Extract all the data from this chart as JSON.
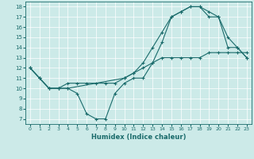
{
  "xlabel": "Humidex (Indice chaleur)",
  "background_color": "#cceae8",
  "line_color": "#1a6b6b",
  "xlim": [
    -0.5,
    23.5
  ],
  "ylim": [
    6.5,
    18.5
  ],
  "xticks": [
    0,
    1,
    2,
    3,
    4,
    5,
    6,
    7,
    8,
    9,
    10,
    11,
    12,
    13,
    14,
    15,
    16,
    17,
    18,
    19,
    20,
    21,
    22,
    23
  ],
  "yticks": [
    7,
    8,
    9,
    10,
    11,
    12,
    13,
    14,
    15,
    16,
    17,
    18
  ],
  "line1_x": [
    0,
    1,
    2,
    3,
    4,
    5,
    6,
    7,
    8,
    9,
    10,
    11,
    12,
    13,
    14,
    15,
    16,
    17,
    18,
    19,
    20,
    21,
    22,
    23
  ],
  "line1_y": [
    12,
    11,
    10,
    10,
    10,
    9.5,
    7.5,
    7,
    7,
    9.5,
    10.5,
    11,
    11,
    12.5,
    14.5,
    17,
    17.5,
    18,
    18,
    17,
    17,
    14,
    14,
    13
  ],
  "line2_x": [
    0,
    1,
    2,
    3,
    4,
    10,
    11,
    12,
    13,
    14,
    15,
    16,
    17,
    18,
    19,
    20,
    21,
    22,
    23
  ],
  "line2_y": [
    12,
    11,
    10,
    10,
    10,
    11,
    11.5,
    12.5,
    14,
    15.5,
    17,
    17.5,
    18,
    18,
    17.5,
    17,
    15,
    14,
    13
  ],
  "line3_x": [
    0,
    1,
    2,
    3,
    4,
    5,
    6,
    7,
    8,
    9,
    10,
    11,
    12,
    13,
    14,
    15,
    16,
    17,
    18,
    19,
    20,
    21,
    22,
    23
  ],
  "line3_y": [
    12,
    11,
    10,
    10,
    10.5,
    10.5,
    10.5,
    10.5,
    10.5,
    10.5,
    11,
    11.5,
    12,
    12.5,
    13,
    13,
    13,
    13,
    13,
    13.5,
    13.5,
    13.5,
    13.5,
    13.5
  ]
}
